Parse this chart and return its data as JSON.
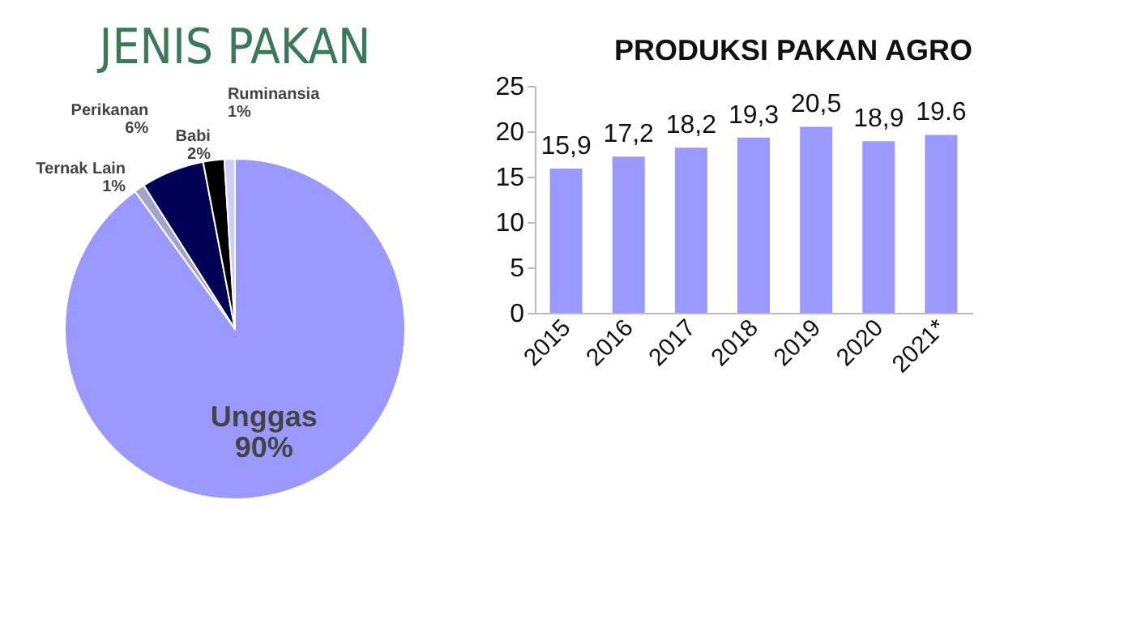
{
  "chart_data": [
    {
      "type": "pie",
      "title": "JENIS PAKAN",
      "categories": [
        "Unggas",
        "Ternak Lain",
        "Perikanan",
        "Babi",
        "Ruminansia"
      ],
      "values": [
        90,
        1,
        6,
        2,
        1
      ],
      "value_labels": [
        "90%",
        "1%",
        "6%",
        "2%",
        "1%"
      ],
      "colors": [
        "#9999ff",
        "#a3a3cc",
        "#000055",
        "#000000",
        "#ccccff"
      ]
    },
    {
      "type": "bar",
      "title": "PRODUKSI PAKAN AGRO",
      "categories": [
        "2015",
        "2016",
        "2017",
        "2018",
        "2019",
        "2020",
        "2021*"
      ],
      "values": [
        15.9,
        17.2,
        18.2,
        19.3,
        20.5,
        18.9,
        19.6
      ],
      "value_labels": [
        "15,9",
        "17,2",
        "18,2",
        "19,3",
        "20,5",
        "18,9",
        "19.6"
      ],
      "color": "#9999ff",
      "ylim": [
        0,
        25
      ],
      "yticks": [
        0,
        5,
        10,
        15,
        20,
        25
      ]
    }
  ]
}
